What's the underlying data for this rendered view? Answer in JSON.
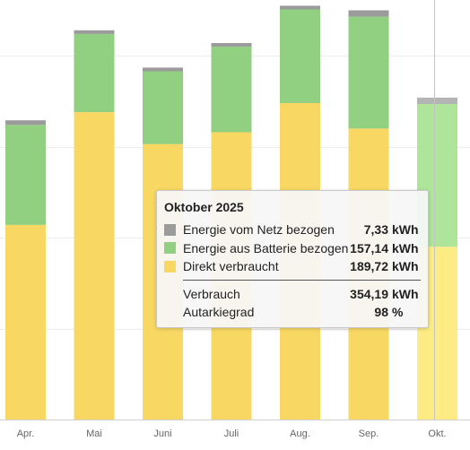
{
  "chart_data": {
    "type": "bar",
    "stacked": true,
    "categories": [
      "Apr.",
      "Mai",
      "Juni",
      "Juli",
      "Aug.",
      "Sep.",
      "Okt."
    ],
    "series": [
      {
        "key": "direct",
        "values": [
          214,
          338,
          303,
          316,
          348,
          320,
          190
        ],
        "color": "#f8d862",
        "highlight_color": "#fdec84"
      },
      {
        "key": "battery",
        "values": [
          110,
          86,
          80,
          94,
          103,
          123,
          157
        ],
        "color": "#92d081",
        "highlight_color": "#aee59b"
      },
      {
        "key": "grid",
        "values": [
          5,
          4,
          4,
          4,
          4,
          7,
          7
        ],
        "color": "#9b9b9b",
        "highlight_color": "#b4b4b4"
      }
    ],
    "ylim": [
      0,
      450
    ],
    "grid": true,
    "highlighted_category": "Okt."
  },
  "tooltip": {
    "title": "Oktober 2025",
    "rows": [
      {
        "label": "Energie vom Netz bezogen",
        "value": "7,33",
        "unit": "kWh",
        "color": "#9b9b9b"
      },
      {
        "label": "Energie aus Batterie bezogen",
        "value": "157,14",
        "unit": "kWh",
        "color": "#92d081"
      },
      {
        "label": "Direkt verbraucht",
        "value": "189,72",
        "unit": "kWh",
        "color": "#f8d862"
      }
    ],
    "summary": [
      {
        "label": "Verbrauch",
        "value": "354,19",
        "unit": "kWh"
      },
      {
        "label": "Autarkiegrad",
        "value": "98",
        "unit": "%"
      }
    ]
  }
}
